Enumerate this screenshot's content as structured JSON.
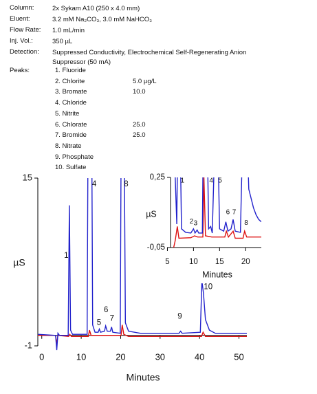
{
  "fields": [
    {
      "label": "Column:",
      "value": "2x Sykam A10 (250 x 4.0 mm)"
    },
    {
      "label": "Eluent:",
      "value": "3.2 mM Na₂CO₃, 3.0 mM NaHCO₃"
    },
    {
      "label": "Flow Rate:",
      "value": "1.0 mL/min"
    },
    {
      "label": "Inj. Vol.:",
      "value": "350 µL"
    },
    {
      "label": "Detection:",
      "value": "Suppressed Conductivity, Electrochemical Self-Regenerating Anion Suppressor (50 mA)"
    }
  ],
  "peaks_label": "Peaks:",
  "peaks": [
    {
      "name": "1. Fluoride"
    },
    {
      "name": "2. Chlorite",
      "concentration": "5.0 µg/L"
    },
    {
      "name": "3. Bromate",
      "concentration": "10.0"
    },
    {
      "name": "4. Chloride"
    },
    {
      "name": "5. Nitrite"
    },
    {
      "name": "6. Chlorate",
      "concentration": "25.0"
    },
    {
      "name": "7. Bromide",
      "concentration": "25.0"
    },
    {
      "name": "8. Nitrate"
    },
    {
      "name": "9. Phosphate"
    },
    {
      "name": "10. Sulfate"
    }
  ],
  "chart_data": [
    {
      "type": "line",
      "x_label": "Minutes",
      "y_label": "µS",
      "xlim": [
        -1,
        52
      ],
      "xticks": [
        0,
        10,
        20,
        30,
        40,
        50
      ],
      "ylim": [
        -1,
        15
      ],
      "yticks": [
        -1,
        15
      ],
      "series": [
        {
          "color": "#2222cc",
          "x": [
            -1,
            3.5,
            3.8,
            4.1,
            4.5,
            6.7,
            7.0,
            7.3,
            7.8,
            11.5,
            11.8,
            12.6,
            12.9,
            13.5,
            14.3,
            14.6,
            14.9,
            15.9,
            16.2,
            16.6,
            17.4,
            17.7,
            18.0,
            19.9,
            20.2,
            20.8,
            21.2,
            22,
            25,
            34.8,
            35.2,
            35.6,
            40.2,
            40.6,
            41.0,
            41.5,
            42.5,
            44,
            52
          ],
          "values": [
            0.1,
            0,
            -1.4,
            0.2,
            0,
            0,
            12.4,
            0.5,
            0.1,
            0.1,
            25,
            25,
            1,
            0.3,
            0.3,
            0.6,
            0.3,
            0.4,
            0.9,
            0.4,
            0.4,
            0.8,
            0.3,
            0.2,
            25,
            25,
            1.2,
            0.4,
            0.2,
            0.2,
            0.4,
            0.2,
            0.3,
            5.2,
            4.0,
            1.5,
            0.5,
            0.2,
            0.2
          ]
        },
        {
          "color": "#dd1111",
          "x": [
            -1,
            3.5,
            3.8,
            4.1,
            6.8,
            7.1,
            7.5,
            11.8,
            12.1,
            12.5,
            20.1,
            20.4,
            20.8,
            22,
            40.5,
            40.9,
            41.5,
            52
          ],
          "values": [
            0,
            0,
            -0.8,
            0,
            -0.1,
            0.1,
            -0.1,
            -0.1,
            0.5,
            0,
            0,
            1.0,
            0.1,
            -0.1,
            -0.1,
            0.3,
            -0.1,
            -0.1
          ]
        }
      ],
      "annotations": [
        {
          "text": "1",
          "x": 6.2,
          "y": 7.6
        },
        {
          "text": "4",
          "x": 13.3,
          "y": 14.4
        },
        {
          "text": "8",
          "x": 21.4,
          "y": 14.4
        },
        {
          "text": "5",
          "x": 14.5,
          "y": 1.2
        },
        {
          "text": "6",
          "x": 16.3,
          "y": 2.4
        },
        {
          "text": "7",
          "x": 17.8,
          "y": 1.6
        },
        {
          "text": "9",
          "x": 35,
          "y": 1.8
        },
        {
          "text": "10",
          "x": 42.2,
          "y": 4.6
        }
      ]
    },
    {
      "type": "line",
      "x_label": "Minutes",
      "y_label": "µS",
      "xlim": [
        5.6,
        23
      ],
      "xticks": [
        5,
        10,
        15,
        20
      ],
      "ylim": [
        -0.05,
        0.25
      ],
      "yticks": [
        {
          "value": -0.05,
          "label": "-0,05"
        },
        {
          "value": 0.25,
          "label": "0,25"
        }
      ],
      "series": [
        {
          "color": "#2222cc",
          "x": [
            5.6,
            6.5,
            6.8,
            7.0,
            7.4,
            7.7,
            8.5,
            9.5,
            10.0,
            10.3,
            10.7,
            11.0,
            11.7,
            11.9,
            12.6,
            12.9,
            13.3,
            13.6,
            14.2,
            14.6,
            15.0,
            15.8,
            16.2,
            16.6,
            17.2,
            17.6,
            18.0,
            19,
            19.5,
            20.2,
            20.6,
            21.5,
            22,
            22.5,
            23
          ],
          "values": [
            0.3,
            0.25,
            0.05,
            0.5,
            0.5,
            0.03,
            0.015,
            0.012,
            0.03,
            0.012,
            0.025,
            0.012,
            0.012,
            0.5,
            0.5,
            0.03,
            0.04,
            0.012,
            0.5,
            0.5,
            0.03,
            0.02,
            0.06,
            0.02,
            0.03,
            0.07,
            0.02,
            0.015,
            0.5,
            0.5,
            0.2,
            0.12,
            0.09,
            0.07,
            0.06
          ]
        },
        {
          "color": "#dd1111",
          "x": [
            6.2,
            6.5,
            6.9,
            7.2,
            9.5,
            10.2,
            10.8,
            11.8,
            12.0,
            12.3,
            13.5,
            16.0,
            16.3,
            16.7,
            17.6,
            18,
            19.5,
            19.8,
            20.2,
            23
          ],
          "values": [
            -0.05,
            -0.02,
            0.04,
            -0.01,
            -0.008,
            0,
            -0.005,
            -0.005,
            0.25,
            0,
            -0.005,
            -0.005,
            0.02,
            -0.005,
            0.02,
            -0.01,
            -0.01,
            0.02,
            -0.005,
            -0.005
          ]
        }
      ],
      "annotations": [
        {
          "text": "1",
          "x": 7.9,
          "y": 0.235
        },
        {
          "text": "4",
          "x": 13.4,
          "y": 0.235
        },
        {
          "text": "5",
          "x": 15.1,
          "y": 0.235
        },
        {
          "text": "2",
          "x": 9.6,
          "y": 0.06
        },
        {
          "text": "3",
          "x": 10.4,
          "y": 0.054
        },
        {
          "text": "6",
          "x": 16.6,
          "y": 0.1
        },
        {
          "text": "7",
          "x": 17.8,
          "y": 0.1
        },
        {
          "text": "8",
          "x": 20.1,
          "y": 0.055
        }
      ]
    }
  ]
}
